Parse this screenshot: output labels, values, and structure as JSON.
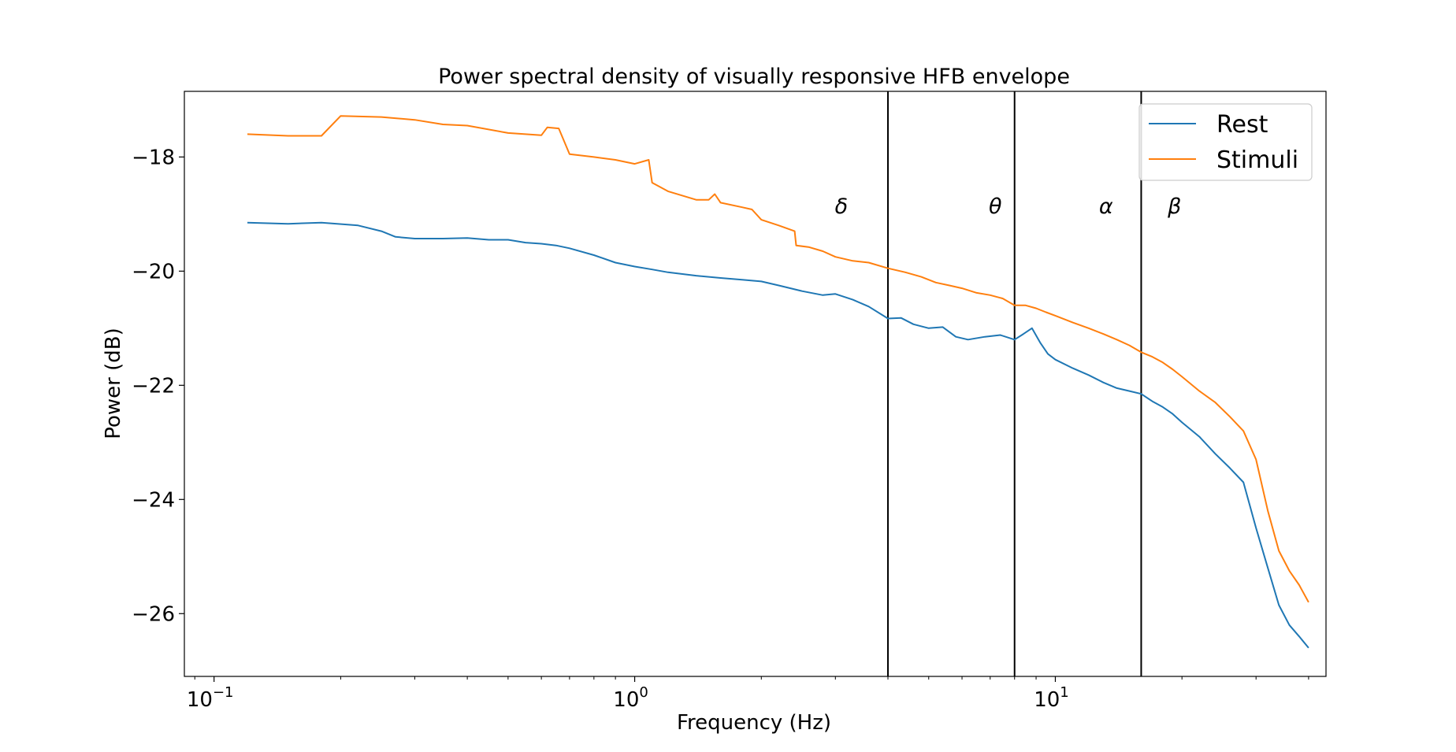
{
  "chart_data": {
    "type": "line",
    "title": "Power spectral density of visually responsive HFB envelope",
    "xlabel": "Frequency (Hz)",
    "ylabel": "Power (dB)",
    "xscale": "log",
    "xlim": [
      0.085,
      44
    ],
    "ylim": [
      -27.1,
      -16.85
    ],
    "x_ticks": [
      {
        "value": 0.1,
        "base": "10",
        "exp": "−1"
      },
      {
        "value": 1,
        "base": "10",
        "exp": "0"
      },
      {
        "value": 10,
        "base": "10",
        "exp": "1"
      }
    ],
    "y_ticks": [
      {
        "value": -18,
        "label": "−18"
      },
      {
        "value": -20,
        "label": "−20"
      },
      {
        "value": -22,
        "label": "−22"
      },
      {
        "value": -24,
        "label": "−24"
      },
      {
        "value": -26,
        "label": "−26"
      }
    ],
    "grid": false,
    "legend": "upper right",
    "band_lines": [
      4,
      8,
      16
    ],
    "band_labels": [
      {
        "text": "δ",
        "x": 3.1,
        "y": -18.85
      },
      {
        "text": "θ",
        "x": 7.2,
        "y": -18.85
      },
      {
        "text": "α",
        "x": 13.2,
        "y": -18.85
      },
      {
        "text": "β",
        "x": 19.2,
        "y": -18.85
      }
    ],
    "series": [
      {
        "name": "Rest",
        "color": "#1f77b4",
        "x": [
          0.12,
          0.15,
          0.18,
          0.22,
          0.25,
          0.27,
          0.3,
          0.35,
          0.4,
          0.45,
          0.5,
          0.55,
          0.6,
          0.65,
          0.7,
          0.8,
          0.9,
          1.0,
          1.1,
          1.2,
          1.4,
          1.6,
          1.8,
          2.0,
          2.2,
          2.5,
          2.8,
          3.0,
          3.3,
          3.6,
          4.0,
          4.3,
          4.6,
          5.0,
          5.4,
          5.8,
          6.2,
          6.8,
          7.4,
          8.0,
          8.4,
          8.8,
          9.2,
          9.6,
          10.0,
          11.0,
          12.0,
          13.0,
          14.0,
          15.0,
          16.0,
          17.0,
          18.0,
          19.0,
          20.0,
          22.0,
          24.0,
          26.0,
          28.0,
          30.0,
          32.0,
          34.0,
          36.0,
          38.0,
          40.0
        ],
        "y": [
          -19.15,
          -19.17,
          -19.15,
          -19.2,
          -19.3,
          -19.4,
          -19.43,
          -19.43,
          -19.42,
          -19.45,
          -19.45,
          -19.5,
          -19.52,
          -19.55,
          -19.6,
          -19.72,
          -19.85,
          -19.92,
          -19.97,
          -20.02,
          -20.08,
          -20.12,
          -20.15,
          -20.18,
          -20.25,
          -20.35,
          -20.42,
          -20.4,
          -20.5,
          -20.62,
          -20.83,
          -20.82,
          -20.93,
          -21.0,
          -20.98,
          -21.15,
          -21.2,
          -21.15,
          -21.12,
          -21.2,
          -21.1,
          -21.0,
          -21.25,
          -21.45,
          -21.55,
          -21.7,
          -21.82,
          -21.95,
          -22.05,
          -22.1,
          -22.15,
          -22.28,
          -22.38,
          -22.5,
          -22.65,
          -22.9,
          -23.2,
          -23.45,
          -23.7,
          -24.5,
          -25.2,
          -25.85,
          -26.2,
          -26.4,
          -26.6
        ]
      },
      {
        "name": "Stimuli",
        "color": "#ff7f0e",
        "x": [
          0.12,
          0.15,
          0.18,
          0.2,
          0.25,
          0.3,
          0.35,
          0.4,
          0.5,
          0.6,
          0.62,
          0.66,
          0.7,
          0.8,
          0.9,
          1.0,
          1.08,
          1.1,
          1.2,
          1.4,
          1.5,
          1.55,
          1.6,
          1.8,
          1.9,
          2.0,
          2.2,
          2.4,
          2.42,
          2.6,
          2.8,
          3.0,
          3.3,
          3.6,
          4.0,
          4.4,
          4.8,
          5.2,
          5.6,
          6.0,
          6.5,
          7.0,
          7.5,
          8.0,
          8.5,
          9.0,
          9.5,
          10.0,
          11.0,
          12.0,
          13.0,
          14.0,
          15.0,
          16.0,
          17.0,
          18.0,
          19.0,
          20.0,
          22.0,
          24.0,
          26.0,
          28.0,
          30.0,
          32.0,
          34.0,
          36.0,
          38.0,
          40.0
        ],
        "y": [
          -17.6,
          -17.63,
          -17.63,
          -17.28,
          -17.3,
          -17.35,
          -17.43,
          -17.45,
          -17.58,
          -17.62,
          -17.48,
          -17.5,
          -17.95,
          -18.0,
          -18.05,
          -18.12,
          -18.05,
          -18.45,
          -18.6,
          -18.75,
          -18.75,
          -18.65,
          -18.8,
          -18.88,
          -18.92,
          -19.1,
          -19.2,
          -19.3,
          -19.55,
          -19.58,
          -19.65,
          -19.75,
          -19.82,
          -19.85,
          -19.95,
          -20.02,
          -20.1,
          -20.2,
          -20.25,
          -20.3,
          -20.38,
          -20.42,
          -20.48,
          -20.6,
          -20.6,
          -20.65,
          -20.72,
          -20.78,
          -20.9,
          -21.0,
          -21.1,
          -21.2,
          -21.3,
          -21.42,
          -21.5,
          -21.6,
          -21.72,
          -21.85,
          -22.1,
          -22.3,
          -22.55,
          -22.8,
          -23.3,
          -24.2,
          -24.9,
          -25.25,
          -25.5,
          -25.8
        ]
      }
    ]
  }
}
